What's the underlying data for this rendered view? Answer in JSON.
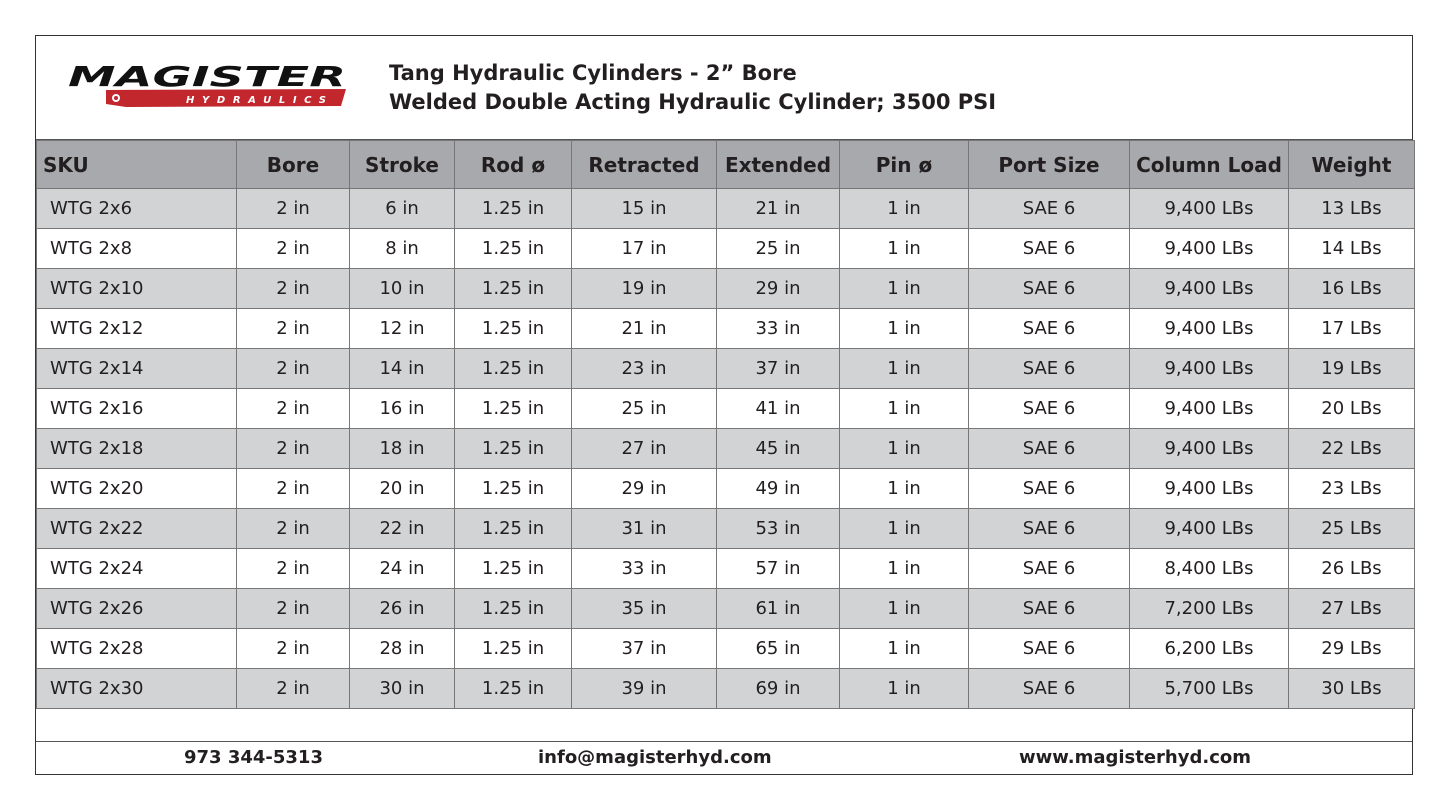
{
  "brand": {
    "logo_text": "MAGISTER",
    "logo_subtext": "HYDRAULICS",
    "red": "#c1272d"
  },
  "header": {
    "title": "Tang Hydraulic Cylinders - 2” Bore",
    "subtitle": "Welded Double Acting Hydraulic Cylinder; 3500 PSI"
  },
  "table": {
    "columns": [
      "SKU",
      "Bore",
      "Stroke",
      "Rod ø",
      "Retracted",
      "Extended",
      "Pin ø",
      "Port Size",
      "Column Load",
      "Weight"
    ],
    "rows": [
      [
        "WTG 2x6",
        "2 in",
        "6 in",
        "1.25 in",
        "15 in",
        "21 in",
        "1 in",
        "SAE 6",
        "9,400 LBs",
        "13 LBs"
      ],
      [
        "WTG 2x8",
        "2 in",
        "8 in",
        "1.25 in",
        "17 in",
        "25 in",
        "1 in",
        "SAE 6",
        "9,400 LBs",
        "14 LBs"
      ],
      [
        "WTG 2x10",
        "2 in",
        "10 in",
        "1.25 in",
        "19 in",
        "29 in",
        "1 in",
        "SAE 6",
        "9,400 LBs",
        "16 LBs"
      ],
      [
        "WTG 2x12",
        "2 in",
        "12 in",
        "1.25 in",
        "21 in",
        "33 in",
        "1 in",
        "SAE 6",
        "9,400 LBs",
        "17 LBs"
      ],
      [
        "WTG 2x14",
        "2 in",
        "14 in",
        "1.25 in",
        "23 in",
        "37 in",
        "1 in",
        "SAE 6",
        "9,400 LBs",
        "19 LBs"
      ],
      [
        "WTG 2x16",
        "2 in",
        "16 in",
        "1.25 in",
        "25 in",
        "41 in",
        "1 in",
        "SAE 6",
        "9,400 LBs",
        "20 LBs"
      ],
      [
        "WTG 2x18",
        "2 in",
        "18 in",
        "1.25 in",
        "27 in",
        "45 in",
        "1 in",
        "SAE 6",
        "9,400 LBs",
        "22 LBs"
      ],
      [
        "WTG 2x20",
        "2 in",
        "20 in",
        "1.25 in",
        "29 in",
        "49 in",
        "1 in",
        "SAE 6",
        "9,400 LBs",
        "23 LBs"
      ],
      [
        "WTG 2x22",
        "2 in",
        "22 in",
        "1.25 in",
        "31 in",
        "53 in",
        "1 in",
        "SAE 6",
        "9,400 LBs",
        "25 LBs"
      ],
      [
        "WTG 2x24",
        "2 in",
        "24 in",
        "1.25 in",
        "33 in",
        "57 in",
        "1 in",
        "SAE 6",
        "8,400 LBs",
        "26 LBs"
      ],
      [
        "WTG 2x26",
        "2 in",
        "26 in",
        "1.25 in",
        "35 in",
        "61 in",
        "1 in",
        "SAE 6",
        "7,200 LBs",
        "27 LBs"
      ],
      [
        "WTG 2x28",
        "2 in",
        "28 in",
        "1.25 in",
        "37 in",
        "65 in",
        "1 in",
        "SAE 6",
        "6,200 LBs",
        "29 LBs"
      ],
      [
        "WTG 2x30",
        "2 in",
        "30 in",
        "1.25 in",
        "39 in",
        "69 in",
        "1 in",
        "SAE 6",
        "5,700 LBs",
        "30 LBs"
      ]
    ]
  },
  "footer": {
    "phone": "973 344-5313",
    "email": "info@magisterhyd.com",
    "website": "www.magisterhyd.com"
  }
}
